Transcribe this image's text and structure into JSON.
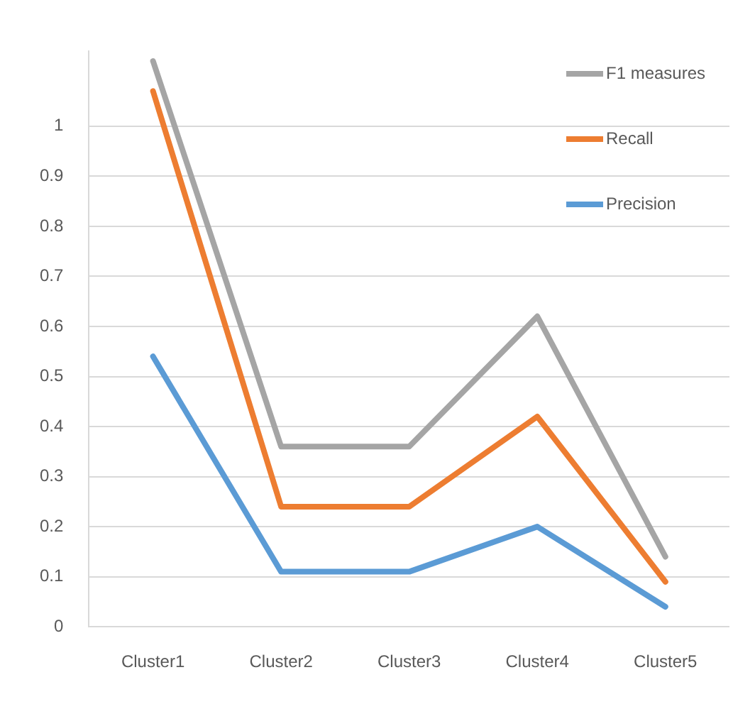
{
  "chart_data": {
    "type": "line",
    "categories": [
      "Cluster1",
      "Cluster2",
      "Cluster3",
      "Cluster4",
      "Cluster5"
    ],
    "series": [
      {
        "name": "F1 measures",
        "color": "#a5a5a5",
        "values": [
          1.13,
          0.36,
          0.36,
          0.62,
          0.14
        ]
      },
      {
        "name": "Recall",
        "color": "#ed7d31",
        "values": [
          1.07,
          0.24,
          0.24,
          0.42,
          0.09
        ]
      },
      {
        "name": "Precision",
        "color": "#5b9bd5",
        "values": [
          0.54,
          0.11,
          0.11,
          0.2,
          0.04
        ]
      }
    ],
    "ylim": [
      0,
      1.15
    ],
    "yticks": [
      0,
      0.1,
      0.2,
      0.3,
      0.4,
      0.5,
      0.6,
      0.7,
      0.8,
      0.9,
      1
    ],
    "grid": "y",
    "legend": "top right",
    "marker": "none",
    "line_style": "solid"
  }
}
